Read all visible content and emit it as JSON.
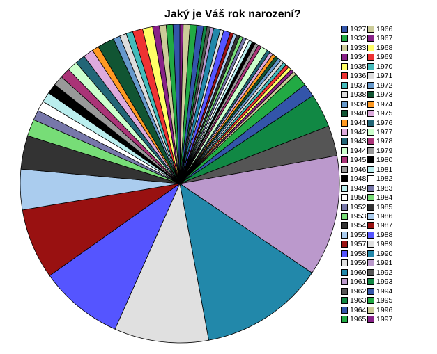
{
  "chart_data": {
    "type": "pie",
    "title": "Jaký je Váš rok narození?",
    "legend_placement": "right",
    "slices": [
      {
        "label": "1927",
        "value": 0.2,
        "color": "#3355aa"
      },
      {
        "label": "1932",
        "value": 0.2,
        "color": "#22aa44"
      },
      {
        "label": "1933",
        "value": 0.2,
        "color": "#cccc99"
      },
      {
        "label": "1934",
        "value": 0.2,
        "color": "#882288"
      },
      {
        "label": "1935",
        "value": 0.3,
        "color": "#ffff66"
      },
      {
        "label": "1936",
        "value": 0.3,
        "color": "#ee3333"
      },
      {
        "label": "1937",
        "value": 0.2,
        "color": "#44bbbb"
      },
      {
        "label": "1938",
        "value": 0.2,
        "color": "#dddddd"
      },
      {
        "label": "1939",
        "value": 0.2,
        "color": "#6699cc"
      },
      {
        "label": "1940",
        "value": 0.5,
        "color": "#115533"
      },
      {
        "label": "1941",
        "value": 0.2,
        "color": "#ff9922"
      },
      {
        "label": "1942",
        "value": 0.3,
        "color": "#ddaadd"
      },
      {
        "label": "1943",
        "value": 0.3,
        "color": "#226677"
      },
      {
        "label": "1944",
        "value": 0.3,
        "color": "#ccffcc"
      },
      {
        "label": "1945",
        "value": 0.3,
        "color": "#aa3377"
      },
      {
        "label": "1946",
        "value": 0.3,
        "color": "#999999"
      },
      {
        "label": "1948",
        "value": 0.3,
        "color": "#000000"
      },
      {
        "label": "1949",
        "value": 0.3,
        "color": "#bbeeee"
      },
      {
        "label": "1950",
        "value": 0.3,
        "color": "#ffffff"
      },
      {
        "label": "1952",
        "value": 0.3,
        "color": "#7777aa"
      },
      {
        "label": "1953",
        "value": 0.5,
        "color": "#77dd77"
      },
      {
        "label": "1954",
        "value": 1.0,
        "color": "#333333"
      },
      {
        "label": "1955",
        "value": 1.2,
        "color": "#aaccee"
      },
      {
        "label": "1957",
        "value": 2.1,
        "color": "#991111"
      },
      {
        "label": "1958",
        "value": 2.5,
        "color": "#5555ff"
      },
      {
        "label": "1959",
        "value": 2.8,
        "color": "#e0e0e0"
      },
      {
        "label": "1960",
        "value": 3.7,
        "color": "#2288aa"
      },
      {
        "label": "1961",
        "value": 3.6,
        "color": "#bb99cc"
      },
      {
        "label": "1962",
        "value": 0.9,
        "color": "#555555"
      },
      {
        "label": "1963",
        "value": 1.0,
        "color": "#118844"
      },
      {
        "label": "1964",
        "value": 0.4,
        "color": "#3355aa"
      },
      {
        "label": "1965",
        "value": 0.4,
        "color": "#22aa44"
      },
      {
        "label": "1966",
        "value": 0.1,
        "color": "#cccc99"
      },
      {
        "label": "1967",
        "value": 0.1,
        "color": "#882288"
      },
      {
        "label": "1968",
        "value": 0.1,
        "color": "#ffff66"
      },
      {
        "label": "1969",
        "value": 0.1,
        "color": "#ee3333"
      },
      {
        "label": "1970",
        "value": 0.1,
        "color": "#44bbbb"
      },
      {
        "label": "1971",
        "value": 0.1,
        "color": "#dddddd"
      },
      {
        "label": "1972",
        "value": 0.1,
        "color": "#6699cc"
      },
      {
        "label": "1973",
        "value": 0.1,
        "color": "#115533"
      },
      {
        "label": "1974",
        "value": 0.1,
        "color": "#ff9922"
      },
      {
        "label": "1975",
        "value": 0.1,
        "color": "#ddaadd"
      },
      {
        "label": "1976",
        "value": 0.1,
        "color": "#226677"
      },
      {
        "label": "1977",
        "value": 0.2,
        "color": "#ccffcc"
      },
      {
        "label": "1978",
        "value": 0.1,
        "color": "#aa3377"
      },
      {
        "label": "1979",
        "value": 0.1,
        "color": "#999999"
      },
      {
        "label": "1980",
        "value": 0.1,
        "color": "#000000"
      },
      {
        "label": "1981",
        "value": 0.1,
        "color": "#bbeeee"
      },
      {
        "label": "1982",
        "value": 0.1,
        "color": "#ffffff"
      },
      {
        "label": "1983",
        "value": 0.1,
        "color": "#7777aa"
      },
      {
        "label": "1984",
        "value": 0.1,
        "color": "#77dd77"
      },
      {
        "label": "1985",
        "value": 0.1,
        "color": "#333333"
      },
      {
        "label": "1986",
        "value": 0.1,
        "color": "#aaccee"
      },
      {
        "label": "1987",
        "value": 0.1,
        "color": "#991111"
      },
      {
        "label": "1988",
        "value": 0.2,
        "color": "#5555ff"
      },
      {
        "label": "1989",
        "value": 0.1,
        "color": "#e0e0e0"
      },
      {
        "label": "1990",
        "value": 0.2,
        "color": "#2288aa"
      },
      {
        "label": "1991",
        "value": 0.1,
        "color": "#bb99cc"
      },
      {
        "label": "1992",
        "value": 0.1,
        "color": "#555555"
      },
      {
        "label": "1993",
        "value": 0.1,
        "color": "#118844"
      },
      {
        "label": "1994",
        "value": 0.2,
        "color": "#3355aa"
      },
      {
        "label": "1995",
        "value": 0.2,
        "color": "#22aa44"
      },
      {
        "label": "1996",
        "value": 0.2,
        "color": "#cccc99"
      },
      {
        "label": "1997",
        "value": 0.1,
        "color": "#882288"
      }
    ]
  }
}
